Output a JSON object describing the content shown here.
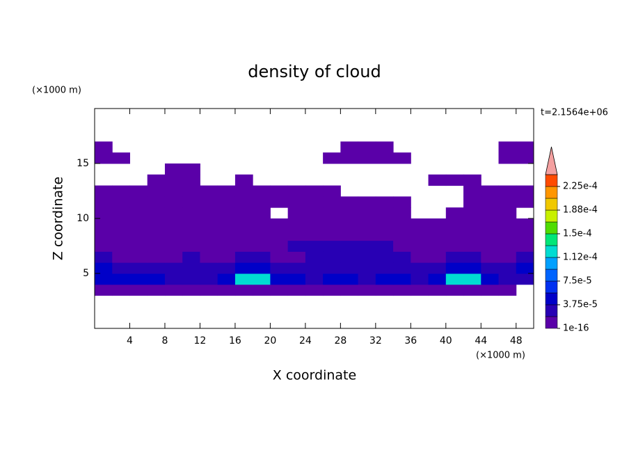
{
  "chart_data": {
    "type": "heatmap",
    "title": "density of cloud",
    "subtitle": "t=2.1564e+06",
    "x_label": "X coordinate",
    "y_label": "Z coordinate",
    "x_unit": "(×1000 m)",
    "y_unit": "(×1000 m)",
    "xlim": [
      0,
      50
    ],
    "ylim": [
      0,
      20
    ],
    "xticks": [
      4,
      8,
      12,
      16,
      20,
      24,
      28,
      32,
      36,
      40,
      44,
      48
    ],
    "yticks": [
      5,
      10,
      15
    ],
    "x": [
      1,
      3,
      5,
      7,
      9,
      11,
      13,
      15,
      17,
      19,
      21,
      23,
      25,
      27,
      29,
      31,
      33,
      35,
      37,
      39,
      41,
      43,
      45,
      47,
      49
    ],
    "y": [
      3.5,
      4.5,
      5.5,
      6.5,
      7.5,
      8.5,
      9.5,
      10.5,
      11.5,
      12.5,
      13.5,
      14.5,
      15.5,
      16.5
    ],
    "z": [
      [
        1e-06,
        1e-06,
        1e-06,
        1e-06,
        1e-06,
        1e-06,
        1e-06,
        1e-06,
        1e-06,
        1e-06,
        1e-06,
        1e-06,
        1e-06,
        1e-06,
        1e-06,
        1e-06,
        1e-06,
        1e-06,
        1e-06,
        1e-06,
        1e-06,
        1e-06,
        1e-06,
        1e-06,
        null
      ],
      [
        4e-05,
        4e-05,
        4e-05,
        4e-05,
        2e-05,
        2e-05,
        2e-05,
        4e-05,
        0.00012,
        0.00012,
        4e-05,
        4e-05,
        2e-05,
        4e-05,
        4e-05,
        2e-05,
        4e-05,
        4e-05,
        2e-05,
        4e-05,
        0.00012,
        0.00012,
        4e-05,
        2e-05,
        2e-05
      ],
      [
        4e-05,
        2e-05,
        2e-05,
        2e-05,
        2e-05,
        2e-05,
        2e-05,
        2e-05,
        4e-05,
        4e-05,
        2e-05,
        2e-05,
        2e-05,
        2e-05,
        2e-05,
        2e-05,
        2e-05,
        2e-05,
        2e-05,
        2e-05,
        4e-05,
        4e-05,
        2e-05,
        2e-05,
        4e-05
      ],
      [
        2e-05,
        1e-06,
        1e-06,
        1e-06,
        1e-06,
        2e-05,
        1e-06,
        1e-06,
        2e-05,
        2e-05,
        1e-06,
        1e-06,
        2e-05,
        2e-05,
        2e-05,
        2e-05,
        2e-05,
        2e-05,
        1e-06,
        1e-06,
        2e-05,
        2e-05,
        1e-06,
        1e-06,
        2e-05
      ],
      [
        1e-06,
        1e-06,
        1e-06,
        1e-06,
        1e-06,
        1e-06,
        1e-06,
        1e-06,
        1e-06,
        1e-06,
        1e-06,
        2e-05,
        2e-05,
        2e-05,
        2e-05,
        2e-05,
        2e-05,
        1e-06,
        1e-06,
        1e-06,
        1e-06,
        1e-06,
        1e-06,
        1e-06,
        1e-06
      ],
      [
        1e-06,
        1e-06,
        1e-06,
        1e-06,
        1e-06,
        1e-06,
        1e-06,
        1e-06,
        1e-06,
        1e-06,
        1e-06,
        1e-06,
        1e-06,
        1e-06,
        1e-06,
        1e-06,
        1e-06,
        1e-06,
        1e-06,
        1e-06,
        1e-06,
        1e-06,
        1e-06,
        1e-06,
        1e-06
      ],
      [
        1e-06,
        1e-06,
        1e-06,
        1e-06,
        1e-06,
        1e-06,
        1e-06,
        1e-06,
        1e-06,
        1e-06,
        1e-06,
        1e-06,
        1e-06,
        1e-06,
        1e-06,
        1e-06,
        1e-06,
        1e-06,
        1e-06,
        1e-06,
        1e-06,
        1e-06,
        1e-06,
        1e-06,
        1e-06
      ],
      [
        1e-06,
        1e-06,
        1e-06,
        1e-06,
        1e-06,
        1e-06,
        1e-06,
        1e-06,
        1e-06,
        1e-06,
        null,
        1e-06,
        1e-06,
        1e-06,
        1e-06,
        1e-06,
        1e-06,
        1e-06,
        null,
        null,
        1e-06,
        1e-06,
        1e-06,
        1e-06,
        null
      ],
      [
        1e-06,
        1e-06,
        1e-06,
        1e-06,
        1e-06,
        1e-06,
        1e-06,
        1e-06,
        1e-06,
        1e-06,
        1e-06,
        1e-06,
        1e-06,
        1e-06,
        1e-06,
        1e-06,
        1e-06,
        1e-06,
        null,
        null,
        null,
        1e-06,
        1e-06,
        1e-06,
        1e-06
      ],
      [
        1e-06,
        1e-06,
        1e-06,
        1e-06,
        1e-06,
        1e-06,
        1e-06,
        1e-06,
        1e-06,
        1e-06,
        1e-06,
        1e-06,
        1e-06,
        1e-06,
        null,
        null,
        null,
        null,
        null,
        null,
        null,
        1e-06,
        1e-06,
        1e-06,
        1e-06
      ],
      [
        null,
        null,
        null,
        1e-06,
        1e-06,
        1e-06,
        null,
        null,
        1e-06,
        null,
        null,
        null,
        null,
        null,
        null,
        null,
        null,
        null,
        null,
        1e-06,
        1e-06,
        1e-06,
        null,
        null,
        null
      ],
      [
        null,
        null,
        null,
        null,
        1e-06,
        1e-06,
        null,
        null,
        null,
        null,
        null,
        null,
        null,
        null,
        null,
        null,
        null,
        null,
        null,
        null,
        null,
        null,
        null,
        null,
        null
      ],
      [
        1e-06,
        1e-06,
        null,
        null,
        null,
        null,
        null,
        null,
        null,
        null,
        null,
        null,
        null,
        1e-06,
        1e-06,
        1e-06,
        1e-06,
        1e-06,
        null,
        null,
        null,
        null,
        null,
        1e-06,
        1e-06
      ],
      [
        1e-06,
        null,
        null,
        null,
        null,
        null,
        null,
        null,
        null,
        null,
        null,
        null,
        null,
        null,
        1e-06,
        1e-06,
        1e-06,
        null,
        null,
        null,
        null,
        null,
        null,
        1e-06,
        1e-06
      ]
    ],
    "levels": [
      1e-16,
      1.875e-05,
      3.75e-05,
      5.625e-05,
      7.5e-05,
      9.375e-05,
      0.0001125,
      0.00013125,
      0.00015,
      0.00016875,
      0.0001875,
      0.00020625,
      0.000225,
      0.00024375
    ],
    "colors": [
      "#5a00a8",
      "#2800b4",
      "#0000c8",
      "#0030f0",
      "#0064ff",
      "#00a0ff",
      "#00dcd2",
      "#00e678",
      "#50dc00",
      "#c8f000",
      "#f0c800",
      "#ff9600",
      "#ff4b00"
    ],
    "extend_color": "#f4a0a0",
    "colorbar_ticks": [
      {
        "value": 1e-16,
        "label": "1e-16"
      },
      {
        "value": 3.75e-05,
        "label": "3.75e-5"
      },
      {
        "value": 7.5e-05,
        "label": "7.5e-5"
      },
      {
        "value": 0.0001125,
        "label": "1.12e-4"
      },
      {
        "value": 0.00015,
        "label": "1.5e-4"
      },
      {
        "value": 0.0001875,
        "label": "1.88e-4"
      },
      {
        "value": 0.000225,
        "label": "2.25e-4"
      }
    ]
  }
}
